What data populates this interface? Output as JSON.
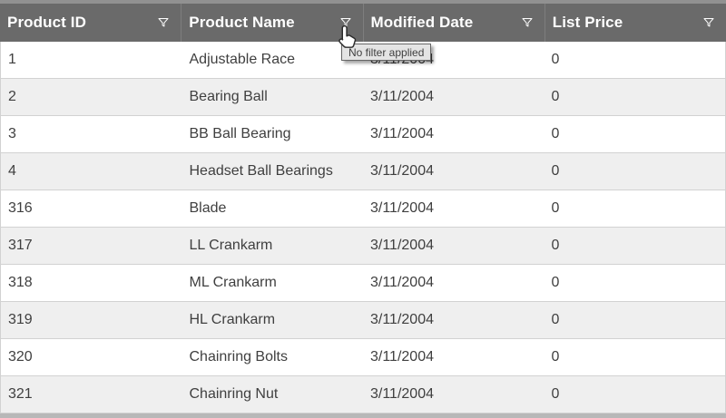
{
  "colors": {
    "headerBg": "#6a6a6a",
    "headerTopStrip": "#919191",
    "headerDivider": "#7e7e7e",
    "headerText": "#ffffff",
    "rowAltBg": "#efefef",
    "rowBorder": "#d2d2d2",
    "bodyText": "#3f3f3f",
    "bottomStrip": "#b8b8b8",
    "tooltipBg": "#e4e4e4",
    "tooltipBorder": "#666666"
  },
  "icons": {
    "column_filter": "funnel-outline-icon",
    "pointer": "hand-cursor"
  },
  "table": {
    "columns": [
      {
        "label": "Product ID"
      },
      {
        "label": "Product Name"
      },
      {
        "label": "Modified Date"
      },
      {
        "label": "List Price"
      }
    ],
    "rows": [
      [
        "1",
        "Adjustable Race",
        "3/11/2004",
        "0"
      ],
      [
        "2",
        "Bearing Ball",
        "3/11/2004",
        "0"
      ],
      [
        "3",
        "BB Ball Bearing",
        "3/11/2004",
        "0"
      ],
      [
        "4",
        "Headset Ball Bearings",
        "3/11/2004",
        "0"
      ],
      [
        "316",
        "Blade",
        "3/11/2004",
        "0"
      ],
      [
        "317",
        "LL Crankarm",
        "3/11/2004",
        "0"
      ],
      [
        "318",
        "ML Crankarm",
        "3/11/2004",
        "0"
      ],
      [
        "319",
        "HL Crankarm",
        "3/11/2004",
        "0"
      ],
      [
        "320",
        "Chainring Bolts",
        "3/11/2004",
        "0"
      ],
      [
        "321",
        "Chainring Nut",
        "3/11/2004",
        "0"
      ]
    ]
  },
  "tooltip": {
    "text": "No filter applied"
  }
}
